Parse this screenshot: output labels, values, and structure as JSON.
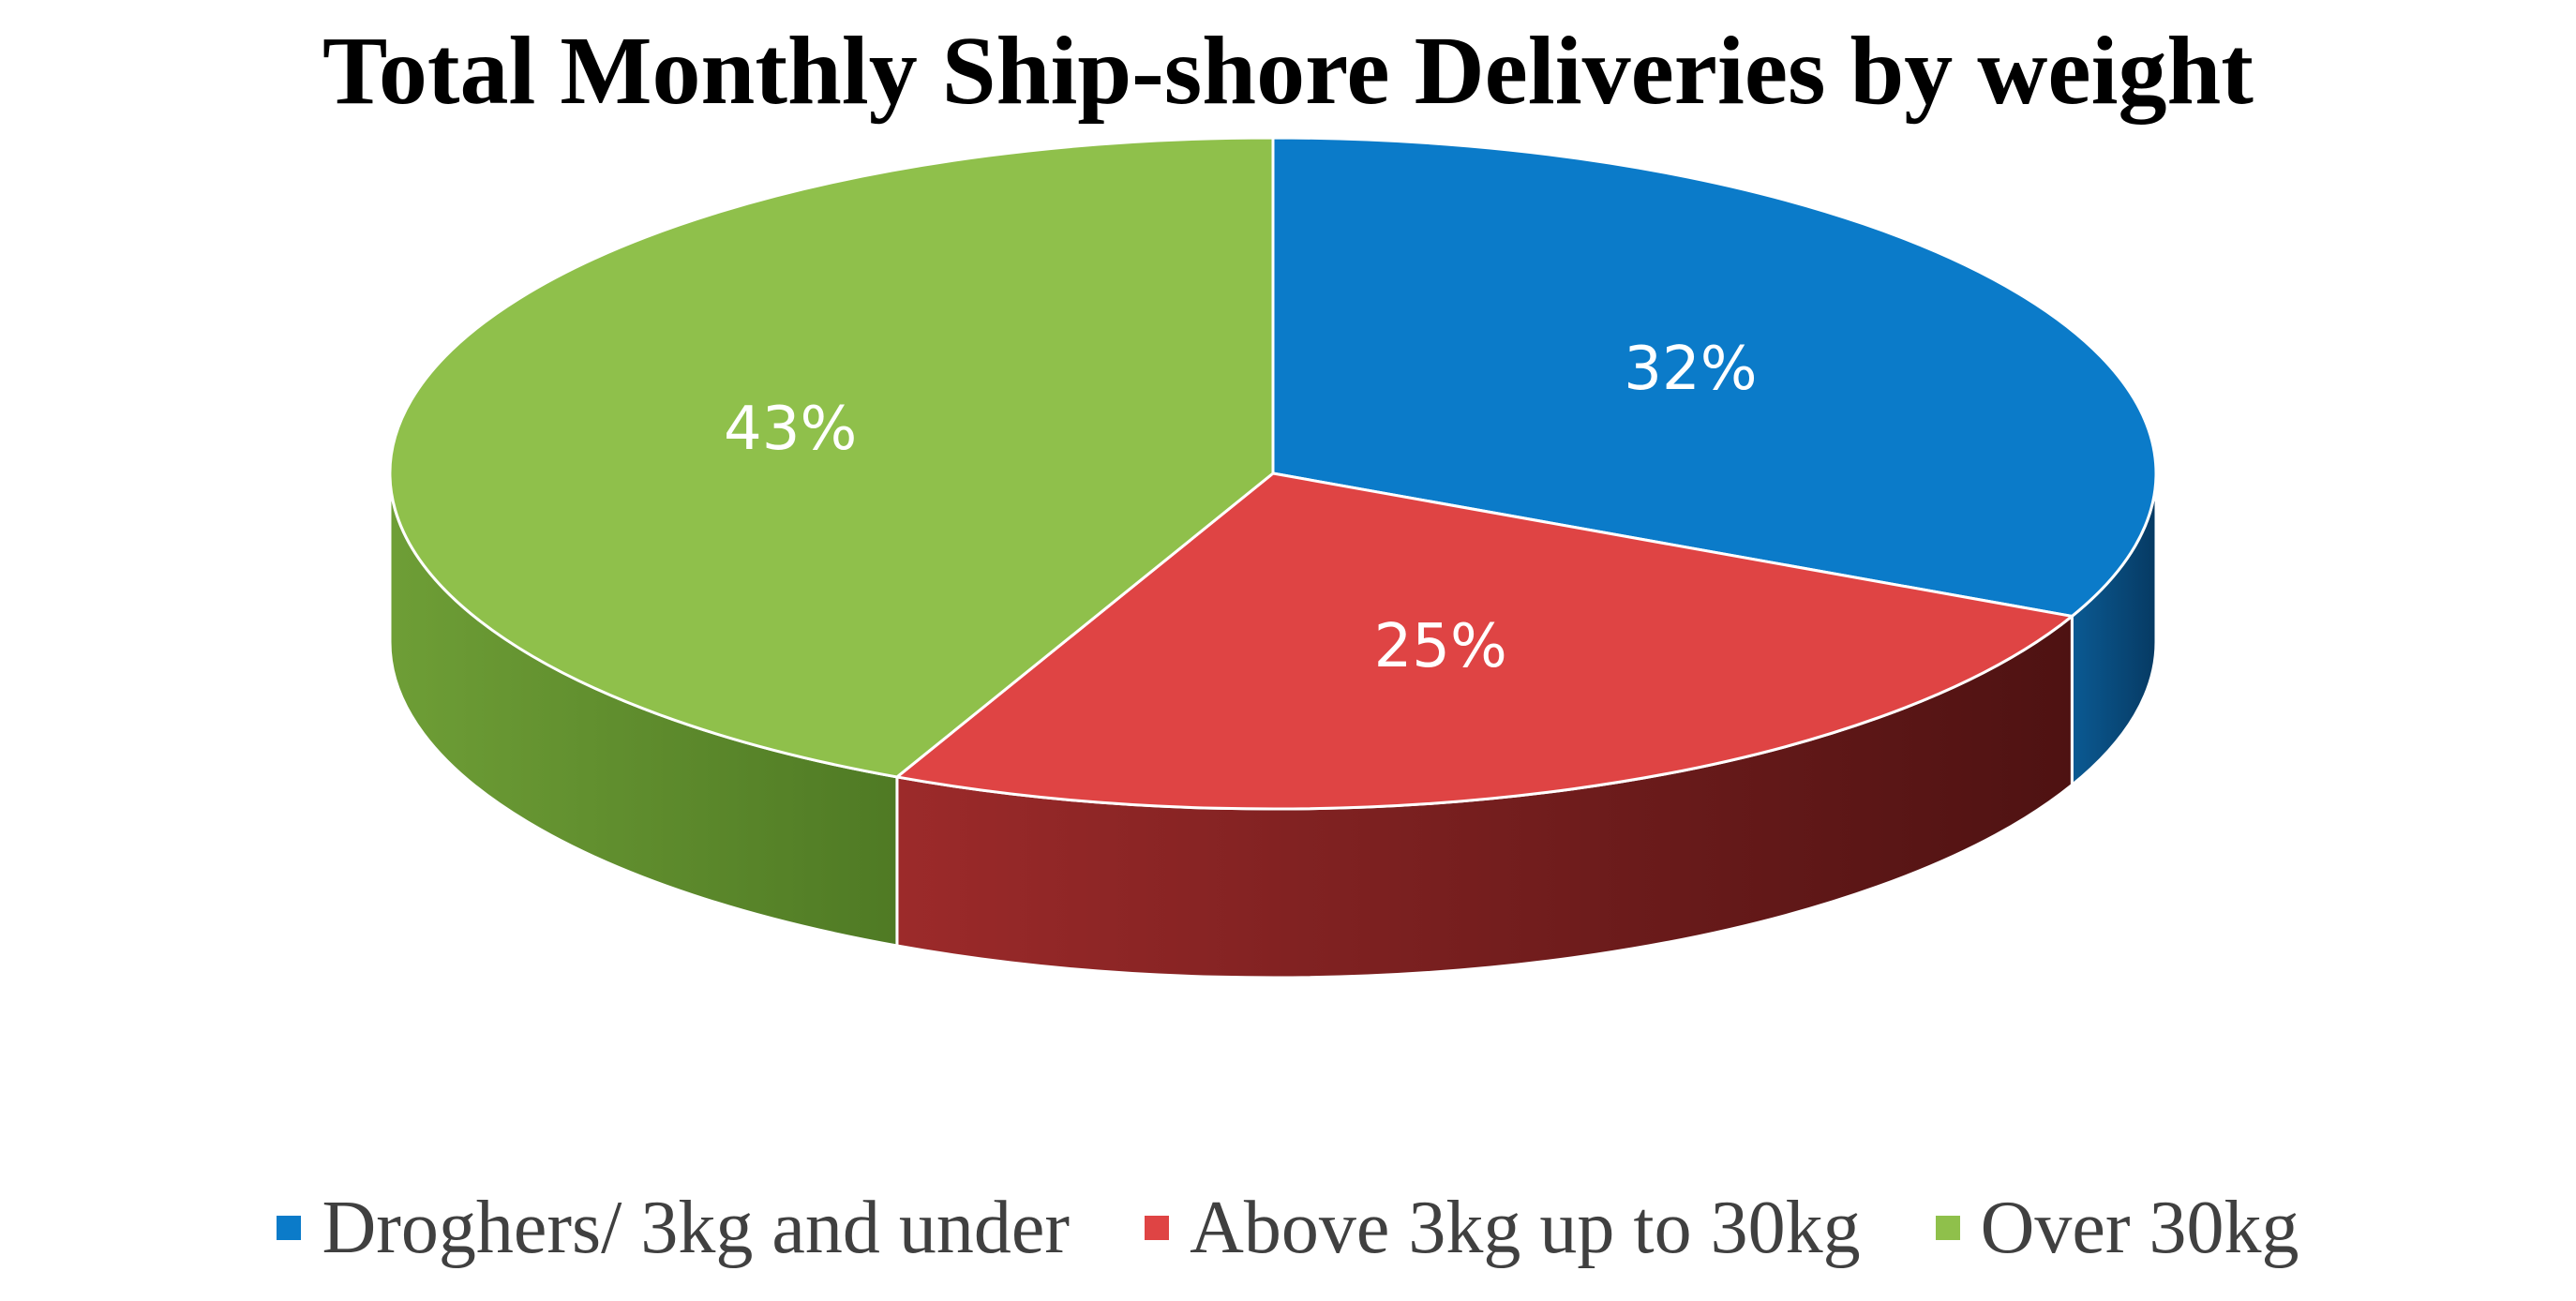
{
  "chart_data": {
    "type": "pie",
    "title": "Total Monthly Ship-shore Deliveries by weight",
    "slices": [
      {
        "name": "Droghers/ 3kg and under",
        "value": 32,
        "label": "32%",
        "color": "#0B7BC9",
        "side_dark": "#063A63",
        "side_light": "#0B5A93"
      },
      {
        "name": "Above 3kg up to 30kg",
        "value": 25,
        "label": "25%",
        "color": "#DF4444",
        "side_dark": "#4E1212",
        "side_light": "#9C2A2A"
      },
      {
        "name": "Over 30kg",
        "value": 43,
        "label": "43%",
        "color": "#8FC04B",
        "side_dark": "#4F7A24",
        "side_light": "#6E9E36"
      }
    ],
    "legend_position": "bottom",
    "style": "3d-pie"
  }
}
